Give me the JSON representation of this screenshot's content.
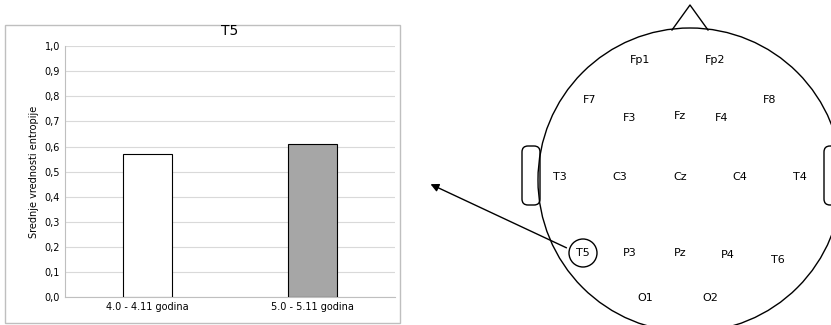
{
  "chart_data": {
    "type": "bar",
    "title": "T5",
    "y_label": "Srednje vrednosti entropije",
    "categories": [
      "4.0 - 4.11 godina",
      "5.0 - 5.11 godina"
    ],
    "values": [
      0.57,
      0.61
    ],
    "colors": [
      "#ffffff",
      "#a6a6a6"
    ],
    "ylim": [
      0,
      1.0
    ],
    "yticks": [
      {
        "value": 0,
        "label": "0,0"
      },
      {
        "value": 0.1,
        "label": "0,1"
      },
      {
        "value": 0.2,
        "label": "0,2"
      },
      {
        "value": 0.3,
        "label": "0,3"
      },
      {
        "value": 0.4,
        "label": "0,4"
      },
      {
        "value": 0.5,
        "label": "0,5"
      },
      {
        "value": 0.6,
        "label": "0,6"
      },
      {
        "value": 0.7,
        "label": "0,7"
      },
      {
        "value": 0.8,
        "label": "0,8"
      },
      {
        "value": 0.9,
        "label": "0,9"
      },
      {
        "value": 1.0,
        "label": "1,0"
      }
    ],
    "grid": true
  },
  "head_diagram": {
    "electrodes": [
      "Fp1",
      "Fp2",
      "F7",
      "F3",
      "Fz",
      "F4",
      "F8",
      "T3",
      "C3",
      "Cz",
      "C4",
      "T4",
      "T5",
      "P3",
      "Pz",
      "P4",
      "T6",
      "O1",
      "O2"
    ],
    "highlighted": "T5"
  }
}
